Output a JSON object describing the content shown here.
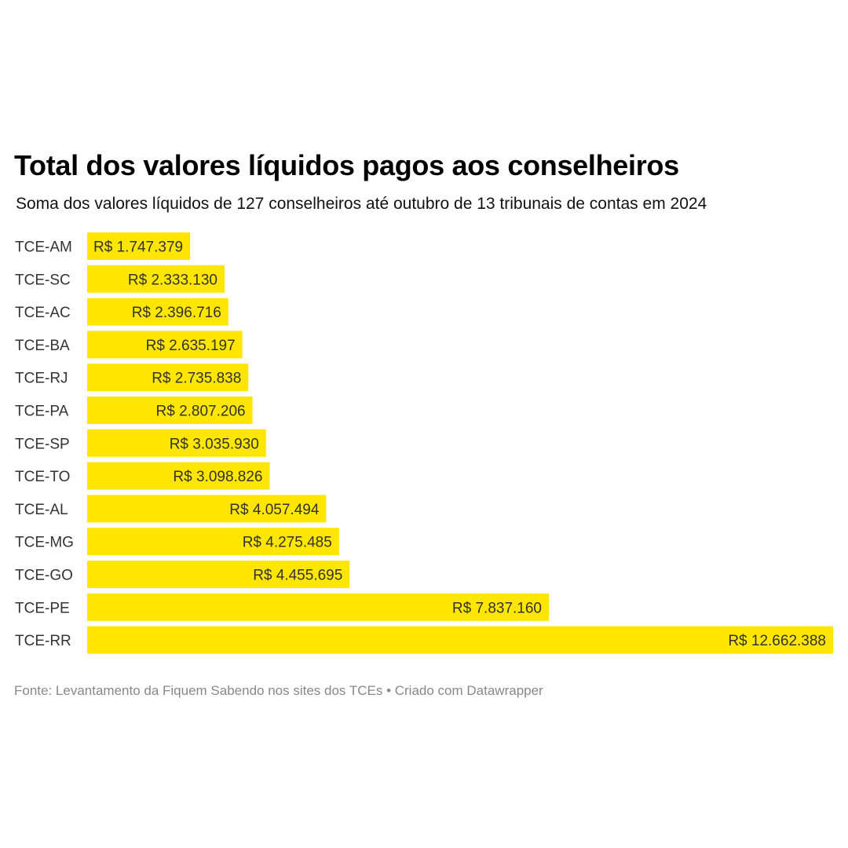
{
  "chart_data": {
    "type": "bar",
    "orientation": "horizontal",
    "title": "Total dos valores líquidos pagos aos conselheiros",
    "subtitle": "Soma dos valores líquidos de 127 conselheiros até outubro de 13 tribunais de contas em 2024",
    "categories": [
      "TCE-AM",
      "TCE-SC",
      "TCE-AC",
      "TCE-BA",
      "TCE-RJ",
      "TCE-PA",
      "TCE-SP",
      "TCE-TO",
      "TCE-AL",
      "TCE-MG",
      "TCE-GO",
      "TCE-PE",
      "TCE-RR"
    ],
    "values": [
      1747379,
      2333130,
      2396716,
      2635197,
      2735838,
      2807206,
      3035930,
      3098826,
      4057494,
      4275485,
      4455695,
      7837160,
      12662388
    ],
    "value_labels": [
      "R$ 1.747.379",
      "R$ 2.333.130",
      "R$ 2.396.716",
      "R$ 2.635.197",
      "R$ 2.735.838",
      "R$ 2.807.206",
      "R$ 3.035.930",
      "R$ 3.098.826",
      "R$ 4.057.494",
      "R$ 4.275.485",
      "R$ 4.455.695",
      "R$ 7.837.160",
      "R$ 12.662.388"
    ],
    "xlim": [
      0,
      12662388
    ],
    "bar_color": "#ffe600",
    "label_color": "#333333",
    "grid": false,
    "source": "Fonte: Levantamento da Fiquem Sabendo nos sites dos TCEs • Criado com Datawrapper"
  }
}
